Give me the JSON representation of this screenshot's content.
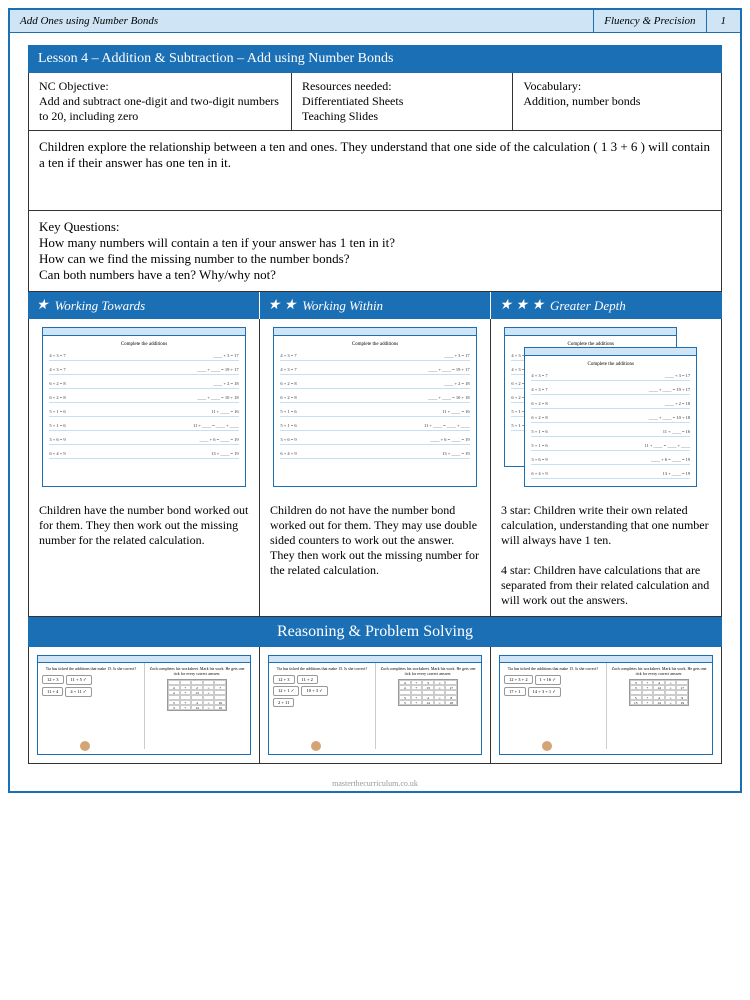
{
  "header": {
    "title": "Add Ones using Number Bonds",
    "section": "Fluency & Precision",
    "page": "1"
  },
  "lesson": {
    "title": "Lesson 4 – Addition & Subtraction – Add using Number Bonds",
    "objective_label": "NC Objective:",
    "objective": "Add and subtract one-digit and two-digit numbers to 20, including zero",
    "resources_label": "Resources needed:",
    "resources": "Differentiated Sheets\nTeaching Slides",
    "vocab_label": "Vocabulary:",
    "vocab": "Addition, number bonds"
  },
  "description": "Children explore the relationship between a ten and ones. They understand that one side of the calculation ( 1 3 + 6 ) will contain a ten if their answer has one ten in it.",
  "key_questions": {
    "label": "Key Questions:",
    "q1": "How many numbers will contain a ten if your answer has 1 ten in it?",
    "q2": "How can we find the missing number to the number bonds?",
    "q3": "Can both numbers have a ten? Why/why not?"
  },
  "levels": {
    "l1": {
      "label": "Working Towards",
      "stars": 1
    },
    "l2": {
      "label": "Working Within",
      "stars": 2
    },
    "l3": {
      "label": "Greater Depth",
      "stars": 3
    }
  },
  "thumbs": {
    "title": "Complete the additions",
    "rows": [
      [
        "4 + 3 = 7",
        "____ + 3 = 17"
      ],
      [
        "4 + 3 = 7",
        "____ + ____ = 19 + 17"
      ],
      [
        "6 + 2 = 8",
        "____ + 2 = 18"
      ],
      [
        "6 + 2 = 8",
        "____ + ____ = 10 + 18"
      ],
      [
        "5 + 1 = 6",
        "11 + ____ = 16"
      ],
      [
        "5 + 1 = 6",
        "11 + ____ = ____ + ____"
      ],
      [
        "3 + 6 = 9",
        "____ + 6 = ____ = 19"
      ],
      [
        "6 + 4 + 9",
        "13 + ____ = 19"
      ]
    ]
  },
  "level_desc": {
    "d1": "Children have the number bond worked out for them. They then work out the missing number for the related calculation.",
    "d2": "Children do not have the number bond worked out for them. They may use double sided counters to work out the answer. They then work out the missing number for the related calculation.",
    "d3a": "3 star: Children write their own related calculation, understanding that one number will always have 1 ten.",
    "d3b": "4 star: Children have calculations that are separated from their related calculation and will work out the answers."
  },
  "rps": {
    "title": "Reasoning & Problem Solving",
    "q_left": "Tia has ticked the additions that make 15. Is she correct?",
    "q_right": "Zach completes his worksheet. Mark his work. He gets one tick for every correct answer.",
    "boxes1": [
      [
        "12 + 3",
        ""
      ],
      [
        "11 + 5 ✓",
        ""
      ],
      [
        "11 + 4",
        ""
      ],
      [
        "4 + 11 ✓",
        ""
      ]
    ],
    "boxes2": [
      [
        "12 + 3",
        ""
      ],
      [
        "11 + 2",
        ""
      ],
      [
        "12 + 1 ✓",
        ""
      ],
      [
        "10 + 3 ✓",
        ""
      ],
      [
        "2 + 11",
        ""
      ]
    ],
    "boxes3": [
      [
        "12 + 3 + 2",
        ""
      ],
      [
        "1 + 16 ✓",
        ""
      ],
      [
        "17 + 1",
        ""
      ],
      [
        "14 + 3 + 1 ✓",
        ""
      ]
    ],
    "grid1": [
      [
        "",
        "",
        "",
        "",
        ""
      ],
      [
        "4",
        "+",
        "2",
        "=",
        "7"
      ],
      [
        "4",
        "+",
        "13",
        "=",
        ""
      ],
      [
        "",
        "",
        "",
        "",
        ""
      ],
      [
        "3",
        "+",
        "4",
        "=",
        "16"
      ],
      [
        "3",
        "+",
        "14",
        "=",
        "16"
      ]
    ],
    "grid2": [
      [
        "4",
        "+",
        "3",
        "=",
        ""
      ],
      [
        "4",
        "+",
        "13",
        "=",
        "17"
      ],
      [
        "",
        "",
        "",
        "",
        ""
      ],
      [
        "3",
        "+",
        "4",
        "=",
        "8"
      ],
      [
        "3",
        "+",
        "14",
        "=",
        "18"
      ]
    ],
    "grid3": [
      [
        "3",
        "+",
        "4",
        "=",
        ""
      ],
      [
        "3",
        "+",
        "14",
        "=",
        "17"
      ],
      [
        "",
        "",
        "",
        "",
        ""
      ],
      [
        "5",
        "+",
        "4",
        "=",
        "9"
      ],
      [
        "15",
        "+",
        "14",
        "=",
        "19"
      ]
    ]
  },
  "footer": "masterthecurriculum.co.uk",
  "colors": {
    "primary": "#1a6fb5",
    "header_bg": "#cfe5f5",
    "border": "#333333"
  }
}
